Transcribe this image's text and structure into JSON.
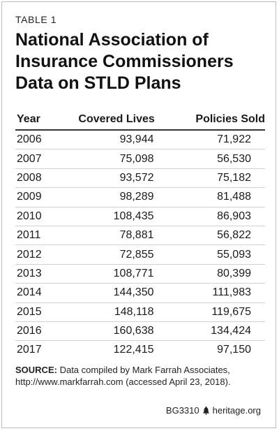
{
  "table_label": "TABLE 1",
  "title": "National Association of Insurance Commissioners Data on STLD Plans",
  "table": {
    "headers": [
      "Year",
      "Covered Lives",
      "Policies Sold"
    ],
    "rows": [
      [
        "2006",
        "93,944",
        "71,922"
      ],
      [
        "2007",
        "75,098",
        "56,530"
      ],
      [
        "2008",
        "93,572",
        "75,182"
      ],
      [
        "2009",
        "98,289",
        "81,488"
      ],
      [
        "2010",
        "108,435",
        "86,903"
      ],
      [
        "2011",
        "78,881",
        "56,822"
      ],
      [
        "2012",
        "72,855",
        "55,093"
      ],
      [
        "2013",
        "108,771",
        "80,399"
      ],
      [
        "2014",
        "144,350",
        "111,983"
      ],
      [
        "2015",
        "148,118",
        "119,675"
      ],
      [
        "2016",
        "160,638",
        "134,424"
      ],
      [
        "2017",
        "122,415",
        "97,150"
      ]
    ]
  },
  "source": {
    "label": "SOURCE:",
    "text": "Data compiled by Mark Farrah Associates, http://www.markfarrah.com (accessed April 23, 2018)."
  },
  "footer": {
    "code": "BG3310",
    "icon": "liberty-bell-icon",
    "site": "heritage.org"
  }
}
